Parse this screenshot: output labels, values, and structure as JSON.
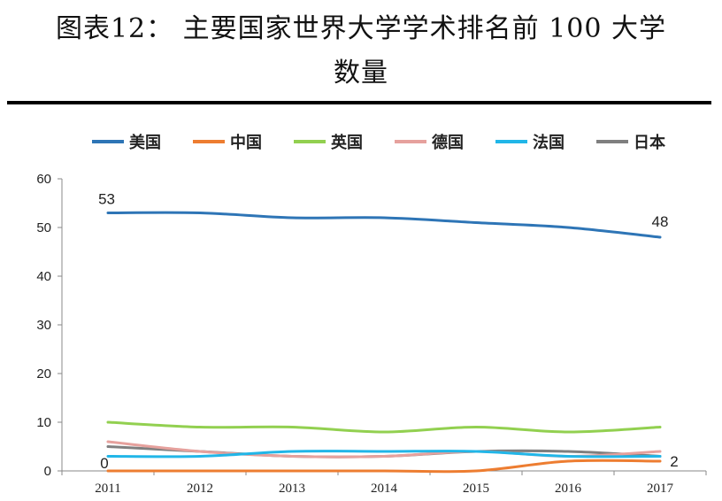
{
  "figure": {
    "title_line1": "图表12： 主要国家世界大学学术排名前 100 大学",
    "title_line2": "数量"
  },
  "chart_data": {
    "type": "line",
    "x": [
      "2011",
      "2012",
      "2013",
      "2014",
      "2015",
      "2016",
      "2017"
    ],
    "series": [
      {
        "name": "美国",
        "color": "#2E75B6",
        "values": [
          53,
          53,
          52,
          52,
          51,
          50,
          48
        ]
      },
      {
        "name": "中国",
        "color": "#ED7D31",
        "values": [
          0,
          0,
          0,
          0,
          0,
          2,
          2
        ]
      },
      {
        "name": "英国",
        "color": "#92D050",
        "values": [
          10,
          9,
          9,
          8,
          9,
          8,
          9
        ]
      },
      {
        "name": "德国",
        "color": "#E6A19D",
        "values": [
          6,
          4,
          3,
          3,
          4,
          3,
          4
        ]
      },
      {
        "name": "法国",
        "color": "#21B6E8",
        "values": [
          3,
          3,
          4,
          4,
          4,
          3,
          3
        ]
      },
      {
        "name": "日本",
        "color": "#7F7F7F",
        "values": [
          5,
          4,
          3,
          3,
          4,
          4,
          3
        ]
      }
    ],
    "ylim": [
      0,
      60
    ],
    "yticks": [
      0,
      10,
      20,
      30,
      40,
      50,
      60
    ],
    "legend_position": "top",
    "grid": false,
    "data_labels": [
      {
        "series": "美国",
        "x": "2011",
        "value": "53"
      },
      {
        "series": "美国",
        "x": "2017",
        "value": "48"
      },
      {
        "series": "中国",
        "x": "2011",
        "value": "0"
      },
      {
        "series": "中国",
        "x": "2017",
        "value": "2"
      }
    ]
  }
}
